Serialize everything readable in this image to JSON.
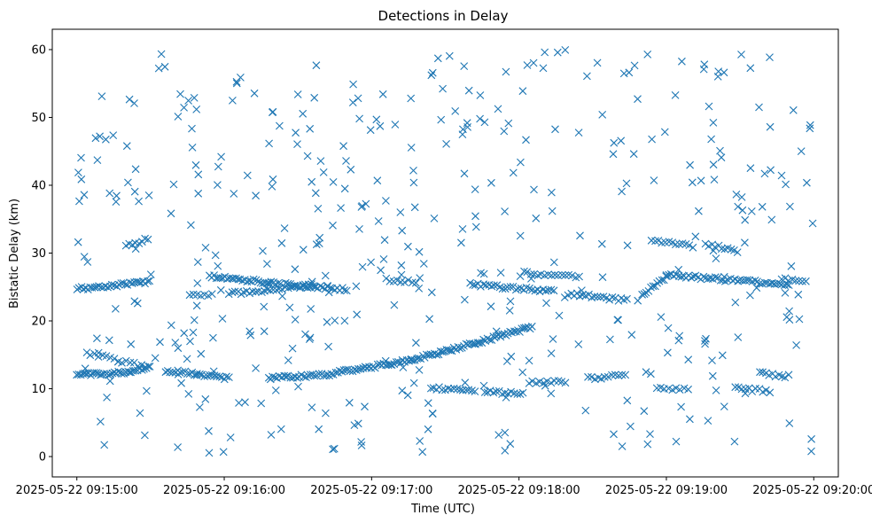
{
  "chart_data": {
    "type": "scatter",
    "title": "Detections in Delay",
    "xlabel": "Time (UTC)",
    "ylabel": "Bistatic Delay (km)",
    "marker": "x",
    "color": "#1f77b4",
    "grid": false,
    "legend": "none",
    "x_unit": "seconds after 09:15:00 on 2025-05-22",
    "xlim": [
      -10,
      310
    ],
    "ylim": [
      -3,
      63
    ],
    "xticks": [
      0,
      60,
      120,
      180,
      240,
      300
    ],
    "xtick_labels": [
      "2025-05-22 09:15:00",
      "2025-05-22 09:16:00",
      "2025-05-22 09:17:00",
      "2025-05-22 09:18:00",
      "2025-05-22 09:19:00",
      "2025-05-22 09:20:00"
    ],
    "yticks": [
      0,
      10,
      20,
      30,
      40,
      50,
      60
    ],
    "ytick_labels": [
      "0",
      "10",
      "20",
      "30",
      "40",
      "50",
      "60"
    ],
    "tracks": [
      {
        "x_start": 0,
        "x_end": 30,
        "y_start": 24.7,
        "y_end": 25.8,
        "step": 0.9
      },
      {
        "x_start": 0,
        "x_end": 22,
        "y_start": 12.0,
        "y_end": 12.4,
        "step": 0.8
      },
      {
        "x_start": 22,
        "x_end": 30,
        "y_start": 12.4,
        "y_end": 13.2,
        "step": 0.9
      },
      {
        "x_start": 4,
        "x_end": 30,
        "y_start": 15.3,
        "y_end": 13.0,
        "step": 1.6
      },
      {
        "x_start": 36,
        "x_end": 62,
        "y_start": 12.7,
        "y_end": 11.5,
        "step": 1.0
      },
      {
        "x_start": 54,
        "x_end": 83,
        "y_start": 26.6,
        "y_end": 25.5,
        "step": 0.9
      },
      {
        "x_start": 62,
        "x_end": 98,
        "y_start": 24.0,
        "y_end": 25.3,
        "step": 1.2
      },
      {
        "x_start": 85,
        "x_end": 110,
        "y_start": 25.4,
        "y_end": 24.6,
        "step": 1.0
      },
      {
        "x_start": 78,
        "x_end": 102,
        "y_start": 11.5,
        "y_end": 12.1,
        "step": 0.9
      },
      {
        "x_start": 102,
        "x_end": 136,
        "y_start": 12.1,
        "y_end": 14.2,
        "step": 0.85
      },
      {
        "x_start": 136,
        "x_end": 170,
        "y_start": 14.2,
        "y_end": 17.5,
        "step": 0.8
      },
      {
        "x_start": 170,
        "x_end": 186,
        "y_start": 17.5,
        "y_end": 19.2,
        "step": 0.8
      },
      {
        "x_start": 126,
        "x_end": 138,
        "y_start": 26.1,
        "y_end": 25.8,
        "step": 1.5
      },
      {
        "x_start": 160,
        "x_end": 195,
        "y_start": 25.4,
        "y_end": 24.3,
        "step": 1.1
      },
      {
        "x_start": 182,
        "x_end": 205,
        "y_start": 27.1,
        "y_end": 26.4,
        "step": 1.4
      },
      {
        "x_start": 200,
        "x_end": 224,
        "y_start": 24.0,
        "y_end": 23.0,
        "step": 1.2
      },
      {
        "x_start": 240,
        "x_end": 290,
        "y_start": 26.8,
        "y_end": 25.3,
        "step": 1.0
      },
      {
        "x_start": 287,
        "x_end": 297,
        "y_start": 26.2,
        "y_end": 25.7,
        "step": 1.4
      },
      {
        "x_start": 144,
        "x_end": 162,
        "y_start": 10.1,
        "y_end": 9.7,
        "step": 1.2
      },
      {
        "x_start": 166,
        "x_end": 182,
        "y_start": 9.6,
        "y_end": 9.2,
        "step": 1.2
      },
      {
        "x_start": 184,
        "x_end": 200,
        "y_start": 10.9,
        "y_end": 11.1,
        "step": 1.5
      },
      {
        "x_start": 208,
        "x_end": 224,
        "y_start": 11.5,
        "y_end": 12.0,
        "step": 1.4
      },
      {
        "x_start": 236,
        "x_end": 250,
        "y_start": 10.0,
        "y_end": 9.8,
        "step": 1.6
      },
      {
        "x_start": 268,
        "x_end": 282,
        "y_start": 10.1,
        "y_end": 9.6,
        "step": 1.4
      },
      {
        "x_start": 278,
        "x_end": 290,
        "y_start": 12.3,
        "y_end": 11.8,
        "step": 1.3
      },
      {
        "x_start": 256,
        "x_end": 270,
        "y_start": 31.2,
        "y_end": 30.3,
        "step": 1.3
      },
      {
        "x_start": 234,
        "x_end": 252,
        "y_start": 31.9,
        "y_end": 30.9,
        "step": 1.4
      },
      {
        "x_start": 46,
        "x_end": 56,
        "y_start": 23.6,
        "y_end": 23.9,
        "step": 1.5
      },
      {
        "x_start": 20,
        "x_end": 30,
        "y_start": 31.0,
        "y_end": 32.2,
        "step": 1.3
      },
      {
        "x_start": 230,
        "x_end": 240,
        "y_start": 23.8,
        "y_end": 26.5,
        "step": 0.9
      }
    ],
    "scatter_count": 430,
    "scatter_seed": 20250522,
    "scatter_x_range": [
      0,
      300
    ],
    "scatter_y_range": [
      0.5,
      60
    ]
  }
}
